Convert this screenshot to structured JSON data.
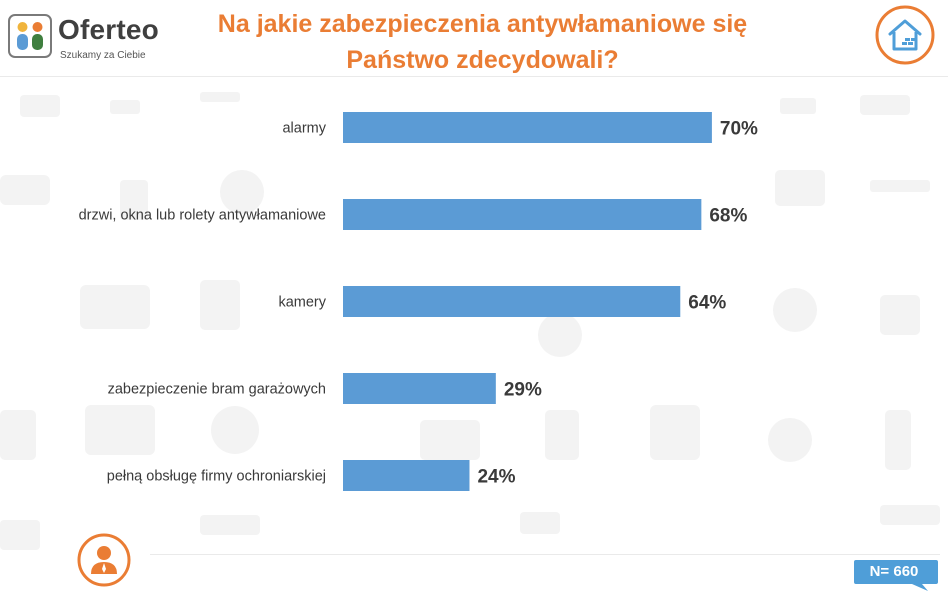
{
  "header": {
    "brand_name": "Oferteo",
    "brand_tagline": "Szukamy za Ciebie",
    "title_line1": "Na jakie zabezpieczenia antywłamaniowe się",
    "title_line2": "Państwo zdecydowali?"
  },
  "footer": {
    "sample_size": "N= 660"
  },
  "colors": {
    "title": "#ea7d34",
    "bar": "#5b9bd5",
    "badge": "#ea7d34",
    "n_badge": "#4f9ed8"
  },
  "icons": {
    "brand": "oferteo-logo-icon",
    "house": "house-icon",
    "person": "person-icon"
  },
  "chart_data": {
    "type": "bar",
    "orientation": "horizontal",
    "title": "Na jakie zabezpieczenia antywłamaniowe się Państwo zdecydowali?",
    "xlabel": "",
    "ylabel": "",
    "unit": "%",
    "xlim": [
      0,
      100
    ],
    "categories": [
      "alarmy",
      "drzwi, okna lub rolety antywłamaniowe",
      "kamery",
      "zabezpieczenie bram garażowych",
      "pełną obsługę firmy ochroniarskiej"
    ],
    "values": [
      70,
      68,
      64,
      29,
      24
    ],
    "value_labels": [
      "70%",
      "68%",
      "64%",
      "29%",
      "24%"
    ]
  }
}
